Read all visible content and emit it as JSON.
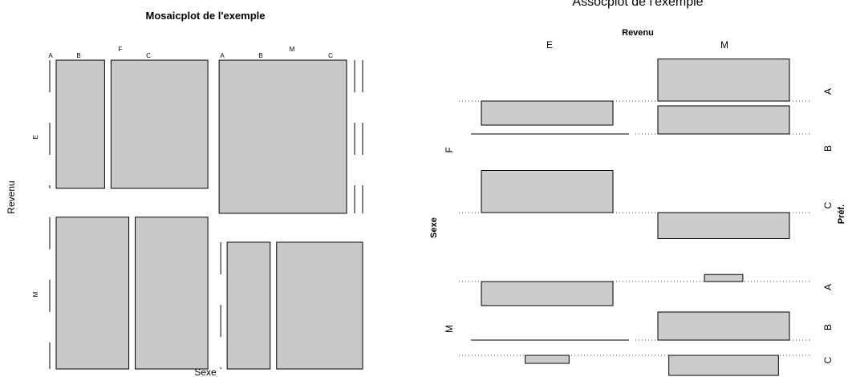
{
  "chart_data": [
    {
      "type": "mosaic",
      "title": "Mosaicplot de l'exemple",
      "xlabel": "Sexe",
      "ylabel": "Revenu",
      "sexe": [
        "F",
        "M"
      ],
      "revenu": [
        "E",
        "M"
      ],
      "pref": [
        "A",
        "B",
        "C"
      ],
      "tile_counts": {
        "F": {
          "E": [
            0,
            9,
            18
          ],
          "M": [
            0,
            16,
            16
          ]
        },
        "M": {
          "E": [
            29,
            0,
            0
          ],
          "M": [
            0,
            8,
            16
          ]
        }
      }
    },
    {
      "type": "assoc",
      "title": "Assocplot de l'exemple",
      "xlabel": "Revenu",
      "ylabel": "Sexe",
      "zlabel": "Préf.",
      "x_levels": [
        "E",
        "M"
      ],
      "y_levels": [
        "F",
        "M"
      ],
      "z_levels": [
        "A",
        "B",
        "C"
      ],
      "residuals": {
        "F": {
          "E": [
            -1.2,
            0.0,
            2.1
          ],
          "M": [
            2.1,
            1.4,
            -1.3
          ]
        },
        "M": {
          "E": [
            -1.2,
            0.0,
            -0.4
          ],
          "M": [
            0.35,
            1.4,
            -1.0
          ]
        }
      }
    }
  ]
}
